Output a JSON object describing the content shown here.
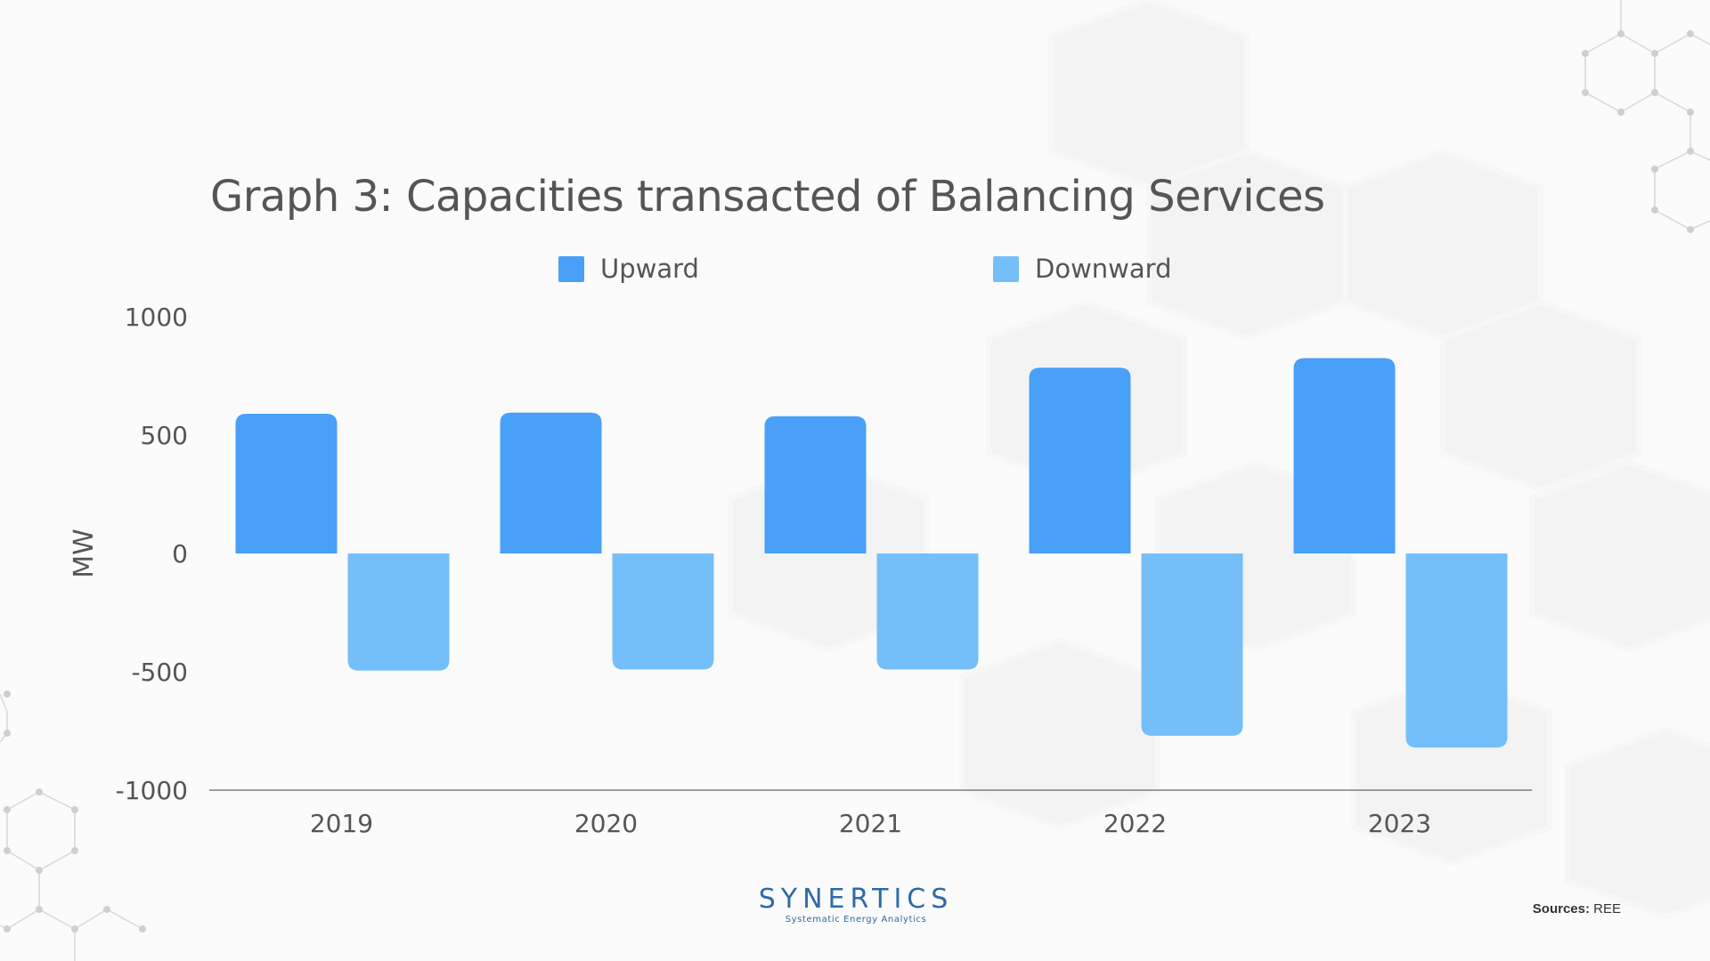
{
  "colors": {
    "upward": "#48a0f8",
    "downward": "#74bff9",
    "text": "#555555",
    "axis_line": "#666666",
    "logo": "#2e6aa6"
  },
  "chart_data": {
    "type": "bar",
    "title": "Graph 3: Capacities transacted of Balancing Services",
    "xlabel": "",
    "ylabel": "MW",
    "categories": [
      "2019",
      "2020",
      "2021",
      "2022",
      "2023"
    ],
    "series": [
      {
        "name": "Upward",
        "values": [
          590,
          595,
          580,
          785,
          825
        ]
      },
      {
        "name": "Downward",
        "values": [
          -495,
          -490,
          -490,
          -770,
          -820
        ]
      }
    ],
    "ylim": [
      -1000,
      1000
    ],
    "yticks": [
      "1000",
      "500",
      "0",
      "-500",
      "-1000"
    ],
    "grid": false,
    "legend_position": "top"
  },
  "legend": {
    "upward_label": "Upward",
    "downward_label": "Downward"
  },
  "footer": {
    "logo_name": "SYNERTICS",
    "logo_tagline": "Systematic Energy Analytics",
    "sources_label": "Sources:",
    "sources_value": "REE"
  }
}
